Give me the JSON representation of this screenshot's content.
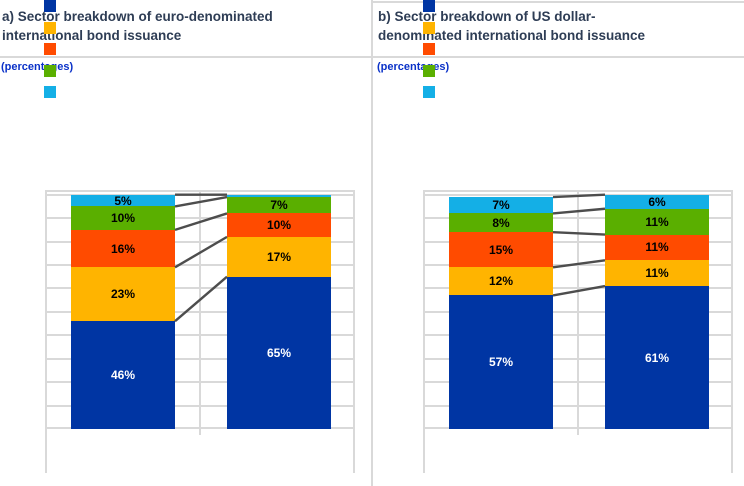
{
  "colors": {
    "background": "#ffffff",
    "grid": "#d9d9d9",
    "connector": "#4d4d4d",
    "title_text": "#2e3d55",
    "note_text": "#0a31c8"
  },
  "panels": [
    {
      "title": "a) Sector breakdown of euro-denominated international bond issuance",
      "title_lines": [
        "a) Sector breakdown of euro-denominated",
        "international bond issuance"
      ],
      "note": "(percentages)"
    },
    {
      "title": "b) Sector breakdown of US dollar-denominated international bond issuance",
      "title_lines": [
        "b) Sector breakdown of US dollar-",
        "denominated international bond issuance"
      ],
      "note": "(percentages)"
    }
  ],
  "chart_data": [
    {
      "type": "bar",
      "subtype": "stacked-100-percent-columns-with-connectors",
      "title": "a) Sector breakdown of euro-denominated international bond issuance",
      "unit_note": "(percentages)",
      "categories": [
        "",
        ""
      ],
      "ylim": [
        0,
        100
      ],
      "gridline_step": 10,
      "grid": "on",
      "legend_position": "top-left",
      "legend_text_visible": false,
      "series": [
        {
          "name": "dark-blue",
          "color": "#0035a3",
          "label_color": "#ffffff",
          "values": [
            46,
            65
          ]
        },
        {
          "name": "amber",
          "color": "#ffb400",
          "label_color": "#000000",
          "values": [
            23,
            17
          ]
        },
        {
          "name": "orange-red",
          "color": "#ff4b00",
          "label_color": "#000000",
          "values": [
            16,
            10
          ]
        },
        {
          "name": "green",
          "color": "#5aaf00",
          "label_color": "#000000",
          "values": [
            10,
            7
          ]
        },
        {
          "name": "light-blue",
          "color": "#14afe6",
          "label_color": "#000000",
          "values": [
            5,
            1
          ]
        }
      ],
      "labels": [
        [
          "46%",
          "23%",
          "16%",
          "10%",
          "5%"
        ],
        [
          "65%",
          "17%",
          "10%",
          "7%",
          ""
        ]
      ]
    },
    {
      "type": "bar",
      "subtype": "stacked-100-percent-columns-with-connectors",
      "title": "b) Sector breakdown of US dollar-denominated international bond issuance",
      "unit_note": "(percentages)",
      "categories": [
        "",
        ""
      ],
      "ylim": [
        0,
        100
      ],
      "gridline_step": 10,
      "grid": "on",
      "legend_position": "top-left",
      "legend_text_visible": false,
      "series": [
        {
          "name": "dark-blue",
          "color": "#0035a3",
          "label_color": "#ffffff",
          "values": [
            57,
            61
          ]
        },
        {
          "name": "amber",
          "color": "#ffb400",
          "label_color": "#000000",
          "values": [
            12,
            11
          ]
        },
        {
          "name": "orange-red",
          "color": "#ff4b00",
          "label_color": "#000000",
          "values": [
            15,
            11
          ]
        },
        {
          "name": "green",
          "color": "#5aaf00",
          "label_color": "#000000",
          "values": [
            8,
            11
          ]
        },
        {
          "name": "light-blue",
          "color": "#14afe6",
          "label_color": "#000000",
          "values": [
            7,
            6
          ]
        }
      ],
      "labels": [
        [
          "57%",
          "12%",
          "15%",
          "8%",
          "7%"
        ],
        [
          "61%",
          "11%",
          "11%",
          "11%",
          "6%"
        ]
      ]
    }
  ]
}
